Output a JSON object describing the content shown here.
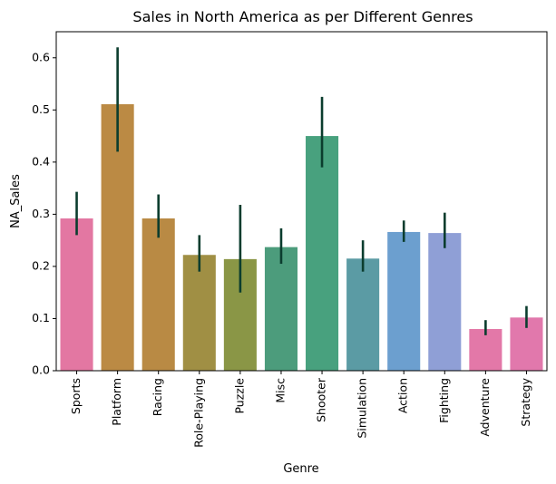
{
  "chart_data": {
    "type": "bar",
    "title": "Sales in North America as per Different Genres",
    "xlabel": "Genre",
    "ylabel": "NA_Sales",
    "ylim": [
      0,
      0.65
    ],
    "yticks": [
      0.0,
      0.1,
      0.2,
      0.3,
      0.4,
      0.5,
      0.6
    ],
    "ytick_labels": [
      "0.0",
      "0.1",
      "0.2",
      "0.3",
      "0.4",
      "0.5",
      "0.6"
    ],
    "grid": false,
    "categories": [
      "Sports",
      "Platform",
      "Racing",
      "Role-Playing",
      "Puzzle",
      "Misc",
      "Shooter",
      "Simulation",
      "Action",
      "Fighting",
      "Adventure",
      "Strategy"
    ],
    "values": [
      0.292,
      0.511,
      0.292,
      0.222,
      0.214,
      0.237,
      0.45,
      0.215,
      0.266,
      0.264,
      0.08,
      0.102
    ],
    "error_low": [
      0.26,
      0.42,
      0.255,
      0.19,
      0.15,
      0.205,
      0.39,
      0.19,
      0.247,
      0.235,
      0.068,
      0.082
    ],
    "error_high": [
      0.343,
      0.62,
      0.338,
      0.26,
      0.318,
      0.273,
      0.525,
      0.25,
      0.288,
      0.303,
      0.097,
      0.124
    ],
    "colors": [
      "#e377a2",
      "#bb8a44",
      "#b98a44",
      "#a08f44",
      "#8a9646",
      "#4c9c7c",
      "#48a17e",
      "#5b9ba4",
      "#6c9fcf",
      "#8f9fd6",
      "#e378a8",
      "#e178ac"
    ],
    "error_color": "#0b3d2e"
  }
}
